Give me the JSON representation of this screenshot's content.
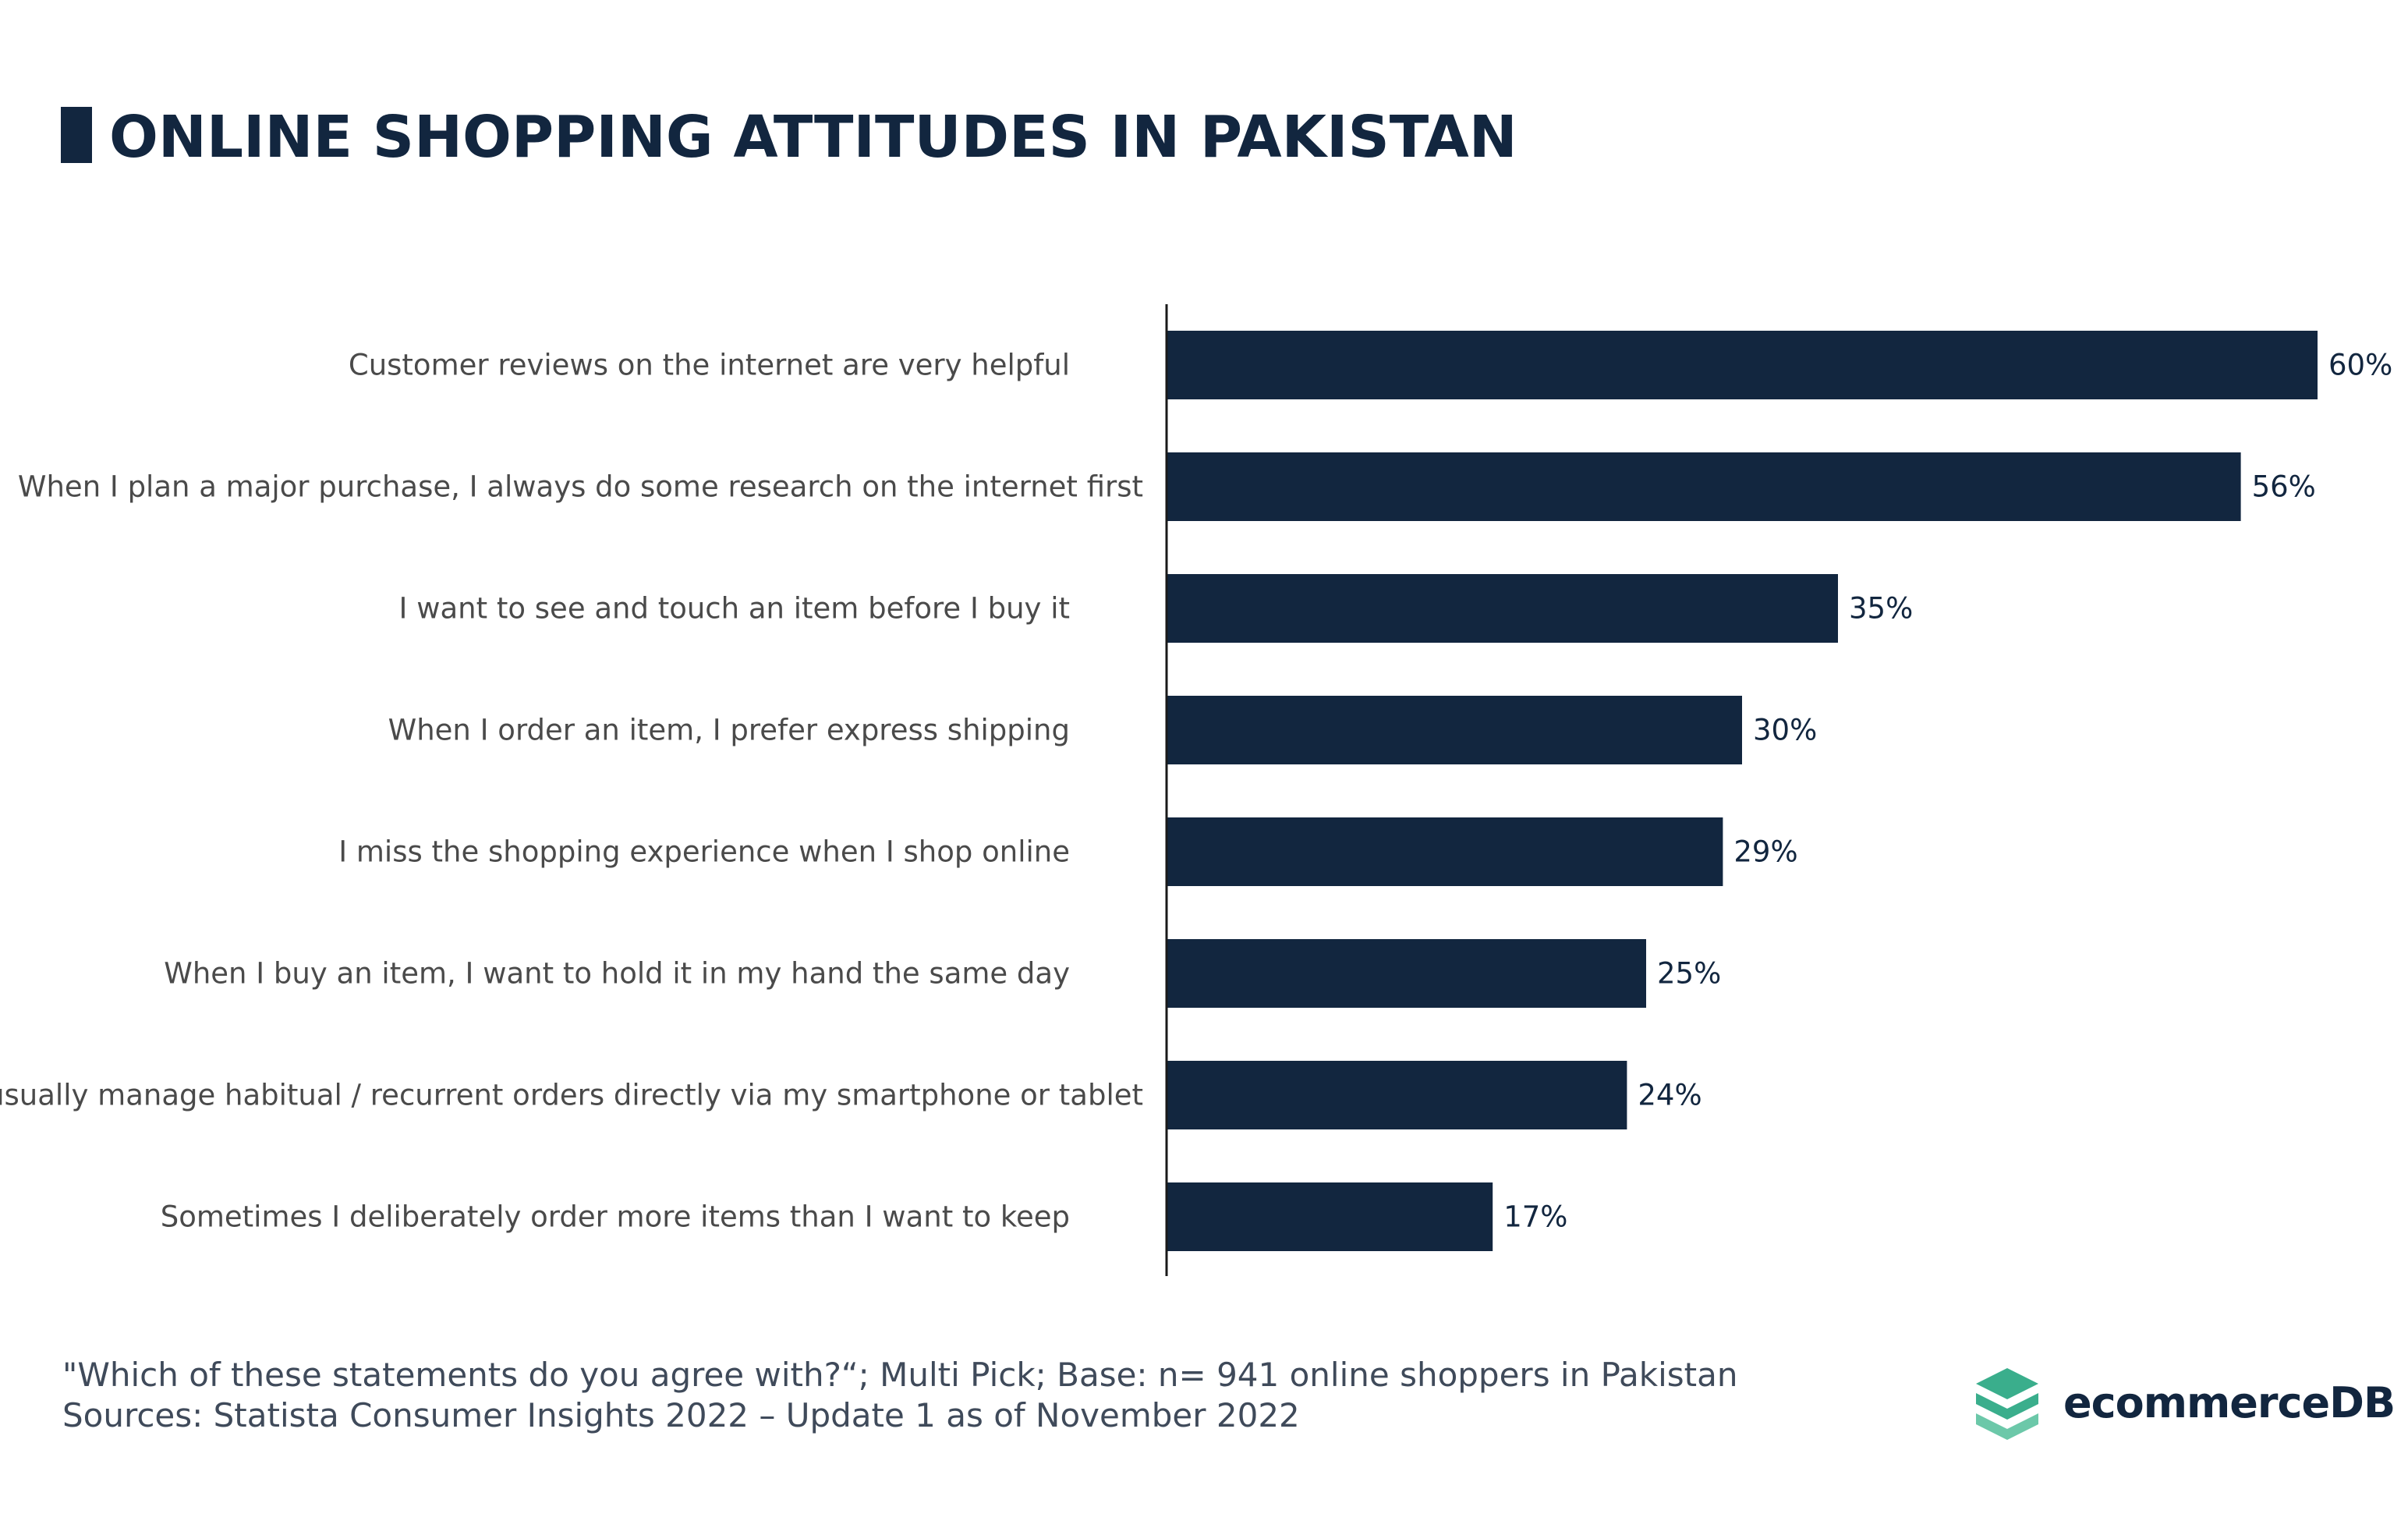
{
  "title": "ONLINE SHOPPING ATTITUDES IN PAKISTAN",
  "chart_data": {
    "type": "bar",
    "orientation": "horizontal",
    "categories": [
      "Customer reviews on the internet are very helpful",
      "When I plan a major purchase, I always do some research on the internet first",
      "I want to see and touch an item before I buy it",
      "When I order an item, I prefer express shipping",
      "I miss the shopping experience when I shop online",
      "When I buy an item, I want to hold it in my hand the same day",
      "I usually manage habitual / recurrent orders directly via my smartphone or tablet",
      "Sometimes I deliberately order more items than I want to keep"
    ],
    "values": [
      60,
      56,
      35,
      30,
      29,
      25,
      24,
      17
    ],
    "value_labels": [
      "60%",
      "56%",
      "35%",
      "30%",
      "29%",
      "25%",
      "24%",
      "17%"
    ],
    "unit": "%",
    "xlim": [
      0,
      60
    ],
    "grid": false,
    "bar_color": "#12263f"
  },
  "footer": {
    "note_line1": "\"Which of these statements do you agree with?“; Multi Pick; Base: n= 941 online shoppers in Pakistan",
    "note_line2": "Sources: Statista Consumer Insights 2022 – Update 1 as of November 2022"
  },
  "logo": {
    "text": "ecommerceDB",
    "icon": "ecommercedb-logo-icon"
  },
  "colors": {
    "primary": "#12263f",
    "logo_green": "#3aae8c"
  }
}
